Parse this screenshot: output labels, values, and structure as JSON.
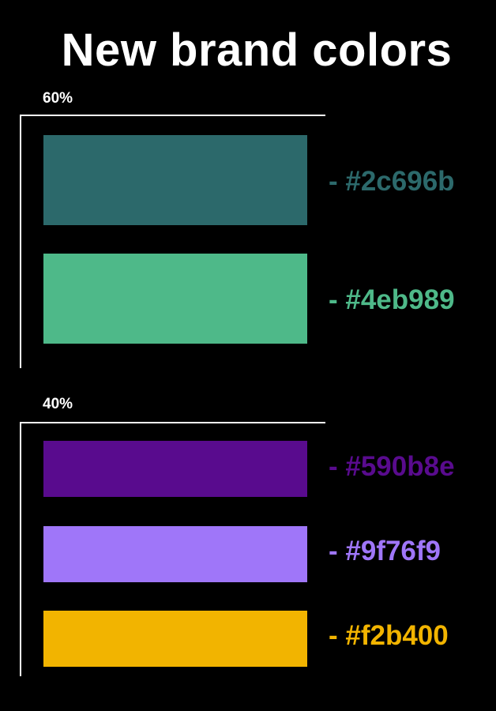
{
  "title": "New brand colors",
  "groups": [
    {
      "label": "60%",
      "colors": [
        {
          "name": "dark-teal",
          "hex": "#2c696b",
          "label": "- #2c696b"
        },
        {
          "name": "mint-green",
          "hex": "#4eb989",
          "label": "- #4eb989"
        }
      ]
    },
    {
      "label": "40%",
      "colors": [
        {
          "name": "deep-purple",
          "hex": "#590b8e",
          "label": "- #590b8e"
        },
        {
          "name": "lavender",
          "hex": "#9f76f9",
          "label": "- #9f76f9"
        },
        {
          "name": "amber",
          "hex": "#f2b400",
          "label": "- #f2b400"
        }
      ]
    }
  ]
}
